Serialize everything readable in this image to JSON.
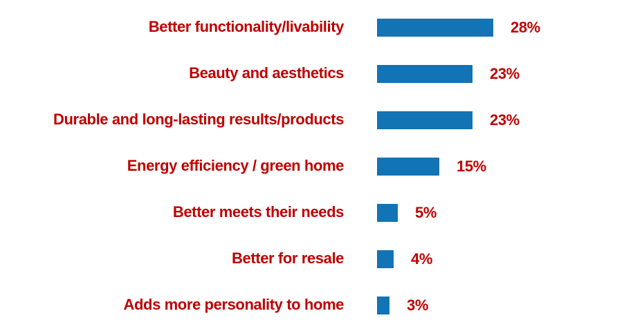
{
  "chart_data": {
    "type": "bar",
    "orientation": "horizontal",
    "title": "",
    "xlabel": "",
    "ylabel": "",
    "axes_visible": false,
    "grid": false,
    "legend": false,
    "xlim": [
      0,
      31
    ],
    "data_label_position": "outside-end",
    "categories": [
      "Better functionality/livability",
      "Beauty and aesthetics",
      "Durable and long-lasting results/products",
      "Energy efficiency / green home",
      "Better meets their needs",
      "Better for resale",
      "Adds more personality to home"
    ],
    "values": [
      28,
      23,
      23,
      15,
      5,
      4,
      3
    ],
    "value_labels": [
      "28%",
      "23%",
      "23%",
      "15%",
      "5%",
      "4%",
      "3%"
    ],
    "value_suffix": "%"
  },
  "colors": {
    "bar": "#1273b5",
    "label": "#c00000",
    "background": "#ffffff"
  }
}
